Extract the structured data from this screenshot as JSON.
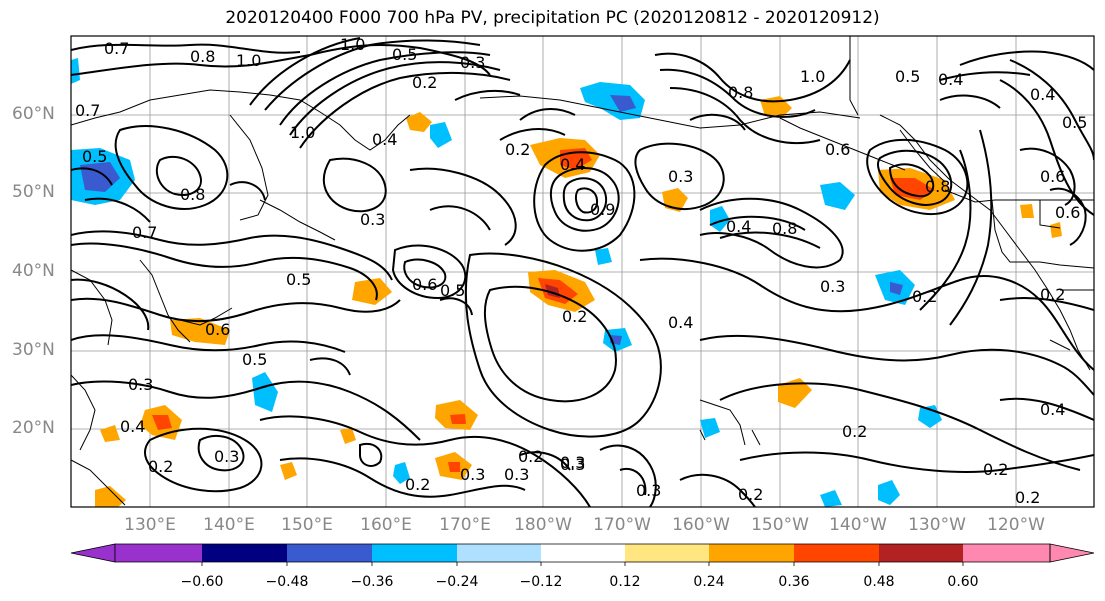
{
  "title": "2020120400 F000 700 hPa PV, precipitation PC (2020120812 - 2020120912)",
  "lat_labels": [
    "60°N",
    "50°N",
    "40°N",
    "30°N",
    "20°N"
  ],
  "lon_labels": [
    "130°E",
    "140°E",
    "150°E",
    "160°E",
    "170°E",
    "180°W",
    "170°W",
    "160°W",
    "150°W",
    "140°W",
    "130°W",
    "120°W"
  ],
  "colorbar": {
    "ticks": [
      "−0.60",
      "−0.48",
      "−0.36",
      "−0.24",
      "−0.12",
      "0.12",
      "0.24",
      "0.36",
      "0.48",
      "0.60"
    ],
    "colors": [
      "#9932CC",
      "#000080",
      "#3A5BD0",
      "#00BFFF",
      "#B0E0FF",
      "#FFFFFF",
      "#FFE680",
      "#FFA500",
      "#FF4500",
      "#B22222",
      "#FF88B0"
    ]
  },
  "contour_labels": [
    "0.7",
    "0.8",
    "1.0",
    "1.0",
    "0.5",
    "0.3",
    "0.2",
    "0.7",
    "1.0",
    "0.8",
    "0.4",
    "1.0",
    "0.4",
    "0.5",
    "0.6",
    "0.8",
    "0.9",
    "0.4",
    "0.3",
    "0.2",
    "0.3",
    "0.6",
    "0.5",
    "0.4",
    "0.8",
    "0.4",
    "0.6",
    "0.5",
    "0.2",
    "0.6",
    "0.3",
    "0.5",
    "0.8",
    "0.5",
    "0.7",
    "0.4",
    "0.3",
    "0.2",
    "0.5",
    "0.6",
    "0.3",
    "0.3",
    "0.2",
    "0.2",
    "0.3",
    "0.2",
    "0.3",
    "0.4",
    "0.2",
    "0.3",
    "0.2",
    "0.2",
    "0.4",
    "0.2",
    "0.2",
    "0.3"
  ]
}
